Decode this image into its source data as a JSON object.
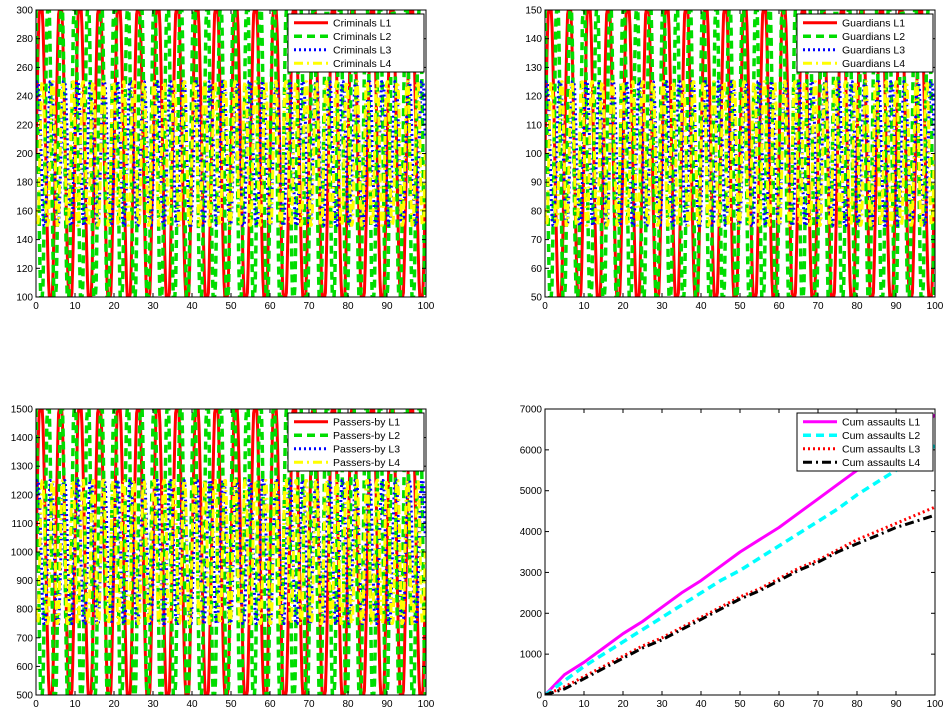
{
  "chart_data": [
    {
      "type": "line",
      "ylim": [
        100,
        300
      ],
      "xlim": [
        0,
        100
      ],
      "x_ticks": [
        0,
        10,
        20,
        30,
        40,
        50,
        60,
        70,
        80,
        90,
        100
      ],
      "y_ticks": [
        100,
        120,
        140,
        160,
        180,
        200,
        220,
        240,
        260,
        280,
        300
      ],
      "legend_position": "top-right",
      "series": [
        {
          "name": "Criminals L1",
          "color": "#ff0000",
          "dash": "solid",
          "min": 100,
          "max": 300,
          "period": 5.0,
          "phase": 0.0
        },
        {
          "name": "Criminals L2",
          "color": "#00dd00",
          "dash": "dashed",
          "min": 100,
          "max": 300,
          "period": 3.4,
          "phase": 1.1
        },
        {
          "name": "Criminals L3",
          "color": "#0000ff",
          "dash": "dotted",
          "min": 150,
          "max": 250,
          "period": 3.4,
          "phase": 0.4
        },
        {
          "name": "Criminals L4",
          "color": "#ffff00",
          "dash": "dashdot",
          "min": 150,
          "max": 250,
          "period": 2.6,
          "phase": 1.6
        }
      ]
    },
    {
      "type": "line",
      "ylim": [
        50,
        150
      ],
      "xlim": [
        0,
        100
      ],
      "x_ticks": [
        0,
        10,
        20,
        30,
        40,
        50,
        60,
        70,
        80,
        90,
        100
      ],
      "y_ticks": [
        50,
        60,
        70,
        80,
        90,
        100,
        110,
        120,
        130,
        140,
        150
      ],
      "legend_position": "top-right",
      "series": [
        {
          "name": "Guardians L1",
          "color": "#ff0000",
          "dash": "solid",
          "min": 50,
          "max": 150,
          "period": 5.0,
          "phase": 0.0
        },
        {
          "name": "Guardians L2",
          "color": "#00dd00",
          "dash": "dashed",
          "min": 50,
          "max": 150,
          "period": 3.4,
          "phase": 1.1
        },
        {
          "name": "Guardians L3",
          "color": "#0000ff",
          "dash": "dotted",
          "min": 75,
          "max": 125,
          "period": 3.4,
          "phase": 0.4
        },
        {
          "name": "Guardians L4",
          "color": "#ffff00",
          "dash": "dashdot",
          "min": 75,
          "max": 125,
          "period": 2.6,
          "phase": 1.6
        }
      ]
    },
    {
      "type": "line",
      "ylim": [
        500,
        1500
      ],
      "xlim": [
        0,
        100
      ],
      "x_ticks": [
        0,
        10,
        20,
        30,
        40,
        50,
        60,
        70,
        80,
        90,
        100
      ],
      "y_ticks": [
        500,
        600,
        700,
        800,
        900,
        1000,
        1100,
        1200,
        1300,
        1400,
        1500
      ],
      "legend_position": "top-right",
      "series": [
        {
          "name": "Passers-by L1",
          "color": "#ff0000",
          "dash": "solid",
          "min": 500,
          "max": 1500,
          "period": 5.0,
          "phase": 0.0
        },
        {
          "name": "Passers-by L2",
          "color": "#00dd00",
          "dash": "dashed",
          "min": 500,
          "max": 1500,
          "period": 3.4,
          "phase": 1.1
        },
        {
          "name": "Passers-by L3",
          "color": "#0000ff",
          "dash": "dotted",
          "min": 750,
          "max": 1250,
          "period": 3.4,
          "phase": 0.4
        },
        {
          "name": "Passers-by L4",
          "color": "#ffff00",
          "dash": "dashdot",
          "min": 750,
          "max": 1250,
          "period": 2.6,
          "phase": 1.6
        }
      ]
    },
    {
      "type": "line",
      "ylim": [
        0,
        7000
      ],
      "xlim": [
        0,
        100
      ],
      "x_ticks": [
        0,
        10,
        20,
        30,
        40,
        50,
        60,
        70,
        80,
        90,
        100
      ],
      "y_ticks": [
        0,
        1000,
        2000,
        3000,
        4000,
        5000,
        6000,
        7000
      ],
      "legend_position": "top-right",
      "x": [
        0,
        5,
        10,
        15,
        20,
        25,
        30,
        35,
        40,
        45,
        50,
        55,
        60,
        65,
        70,
        75,
        80,
        85,
        90,
        95,
        100
      ],
      "series": [
        {
          "name": "Cum assaults L1",
          "color": "#ff00ff",
          "dash": "solid",
          "values": [
            0,
            500,
            800,
            1150,
            1500,
            1800,
            2150,
            2500,
            2800,
            3150,
            3500,
            3800,
            4100,
            4450,
            4800,
            5150,
            5500,
            5800,
            6150,
            6500,
            6850
          ]
        },
        {
          "name": "Cum assaults L2",
          "color": "#00ffff",
          "dash": "dashed",
          "values": [
            0,
            350,
            700,
            1000,
            1300,
            1600,
            1900,
            2200,
            2500,
            2800,
            3050,
            3350,
            3650,
            3950,
            4250,
            4550,
            4900,
            5200,
            5500,
            5800,
            6100
          ]
        },
        {
          "name": "Cum assaults L3",
          "color": "#ff0000",
          "dash": "dotted",
          "values": [
            0,
            200,
            450,
            700,
            950,
            1200,
            1400,
            1650,
            1900,
            2150,
            2400,
            2600,
            2850,
            3100,
            3300,
            3550,
            3800,
            4000,
            4200,
            4400,
            4600
          ]
        },
        {
          "name": "Cum assaults L4",
          "color": "#000000",
          "dash": "dashdot",
          "values": [
            0,
            150,
            400,
            650,
            900,
            1150,
            1350,
            1600,
            1850,
            2100,
            2350,
            2550,
            2800,
            3050,
            3250,
            3500,
            3700,
            3900,
            4100,
            4250,
            4400
          ]
        }
      ]
    }
  ]
}
